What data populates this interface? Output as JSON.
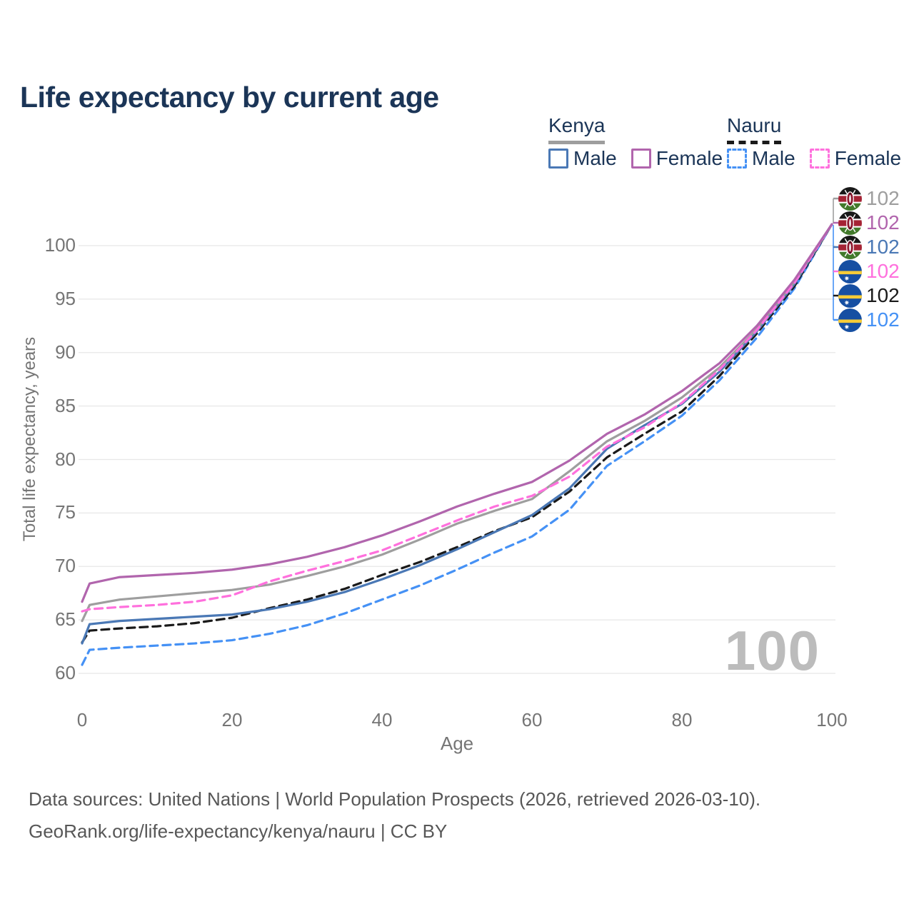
{
  "title": "Life expectancy by current age",
  "legend": {
    "kenya": {
      "label": "Kenya",
      "line_color": "#9e9e9e",
      "items": [
        {
          "label": "Male",
          "color": "#4a78b5",
          "dashed": false
        },
        {
          "label": "Female",
          "color": "#b165ad",
          "dashed": false
        }
      ]
    },
    "nauru": {
      "label": "Nauru",
      "line_color": "#1a1a1a",
      "items": [
        {
          "label": "Male",
          "color": "#4591f5",
          "dashed": true
        },
        {
          "label": "Female",
          "color": "#ff70dd",
          "dashed": true
        }
      ]
    }
  },
  "watermark": "100",
  "end_labels": [
    {
      "flag": "kenya",
      "series": "Kenya both sexes",
      "value": "102",
      "color": "#9e9e9e"
    },
    {
      "flag": "kenya",
      "series": "Kenya female",
      "value": "102",
      "color": "#b165ad"
    },
    {
      "flag": "kenya",
      "series": "Kenya male",
      "value": "102",
      "color": "#4a78b5"
    },
    {
      "flag": "nauru",
      "series": "Nauru female",
      "value": "102",
      "color": "#ff70dd"
    },
    {
      "flag": "nauru",
      "series": "Nauru both sexes",
      "value": "102",
      "color": "#1a1a1a"
    },
    {
      "flag": "nauru",
      "series": "Nauru male",
      "value": "102",
      "color": "#4591f5"
    }
  ],
  "footer": {
    "line1": "Data sources: United Nations | World Population Prospects (2026, retrieved 2026-03-10).",
    "line2": "GeoRank.org/life-expectancy/kenya/nauru | CC BY"
  },
  "chart_data": {
    "type": "line",
    "title": "Life expectancy by current age",
    "xlabel": "Age",
    "ylabel": "Total life expectancy, years",
    "xlim": [
      0,
      100
    ],
    "ylim": [
      58,
      103
    ],
    "xticks": [
      0,
      20,
      40,
      60,
      80,
      100
    ],
    "yticks": [
      60,
      65,
      70,
      75,
      80,
      85,
      90,
      95,
      100
    ],
    "grid": "horizontal",
    "legend_position": "top-right",
    "x": [
      0,
      1,
      5,
      10,
      15,
      20,
      25,
      30,
      35,
      40,
      45,
      50,
      55,
      60,
      65,
      70,
      75,
      80,
      85,
      90,
      95,
      100
    ],
    "series": [
      {
        "name": "Nauru male",
        "country": "Nauru",
        "sex": "male",
        "color": "#4591f5",
        "dashed": true,
        "values": [
          60.8,
          62.2,
          62.4,
          62.6,
          62.8,
          63.1,
          63.7,
          64.5,
          65.6,
          66.9,
          68.2,
          69.7,
          71.3,
          72.8,
          75.3,
          79.4,
          81.7,
          84.1,
          87.4,
          91.4,
          96.0,
          102
        ]
      },
      {
        "name": "Nauru both sexes",
        "country": "Nauru",
        "sex": "both",
        "color": "#1a1a1a",
        "dashed": true,
        "values": [
          62.9,
          64.0,
          64.2,
          64.4,
          64.7,
          65.2,
          66.1,
          66.9,
          67.9,
          69.2,
          70.4,
          71.8,
          73.3,
          74.6,
          77.0,
          80.2,
          82.4,
          84.5,
          87.8,
          91.8,
          96.2,
          102
        ]
      },
      {
        "name": "Kenya male",
        "country": "Kenya",
        "sex": "male",
        "color": "#4a78b5",
        "dashed": false,
        "values": [
          62.8,
          64.6,
          64.9,
          65.1,
          65.3,
          65.5,
          66.0,
          66.7,
          67.6,
          68.8,
          70.1,
          71.6,
          73.2,
          74.8,
          77.3,
          81.0,
          83.2,
          85.2,
          88.2,
          92.0,
          96.4,
          102
        ]
      },
      {
        "name": "Kenya both sexes",
        "country": "Kenya",
        "sex": "both",
        "color": "#9e9e9e",
        "dashed": false,
        "values": [
          64.9,
          66.4,
          66.9,
          67.2,
          67.5,
          67.8,
          68.3,
          69.1,
          70.0,
          71.1,
          72.5,
          74.0,
          75.2,
          76.3,
          78.9,
          81.7,
          83.6,
          85.8,
          88.6,
          92.2,
          96.6,
          102
        ]
      },
      {
        "name": "Nauru female",
        "country": "Nauru",
        "sex": "female",
        "color": "#ff70dd",
        "dashed": true,
        "values": [
          65.8,
          66.0,
          66.2,
          66.4,
          66.7,
          67.3,
          68.6,
          69.6,
          70.5,
          71.5,
          72.9,
          74.3,
          75.6,
          76.6,
          78.4,
          81.2,
          83.0,
          85.3,
          88.4,
          92.1,
          96.5,
          102
        ]
      },
      {
        "name": "Kenya female",
        "country": "Kenya",
        "sex": "female",
        "color": "#b165ad",
        "dashed": false,
        "values": [
          66.7,
          68.4,
          69.0,
          69.2,
          69.4,
          69.7,
          70.2,
          70.9,
          71.8,
          72.9,
          74.2,
          75.6,
          76.8,
          77.9,
          79.9,
          82.4,
          84.2,
          86.4,
          89.0,
          92.5,
          96.8,
          102
        ]
      }
    ]
  }
}
